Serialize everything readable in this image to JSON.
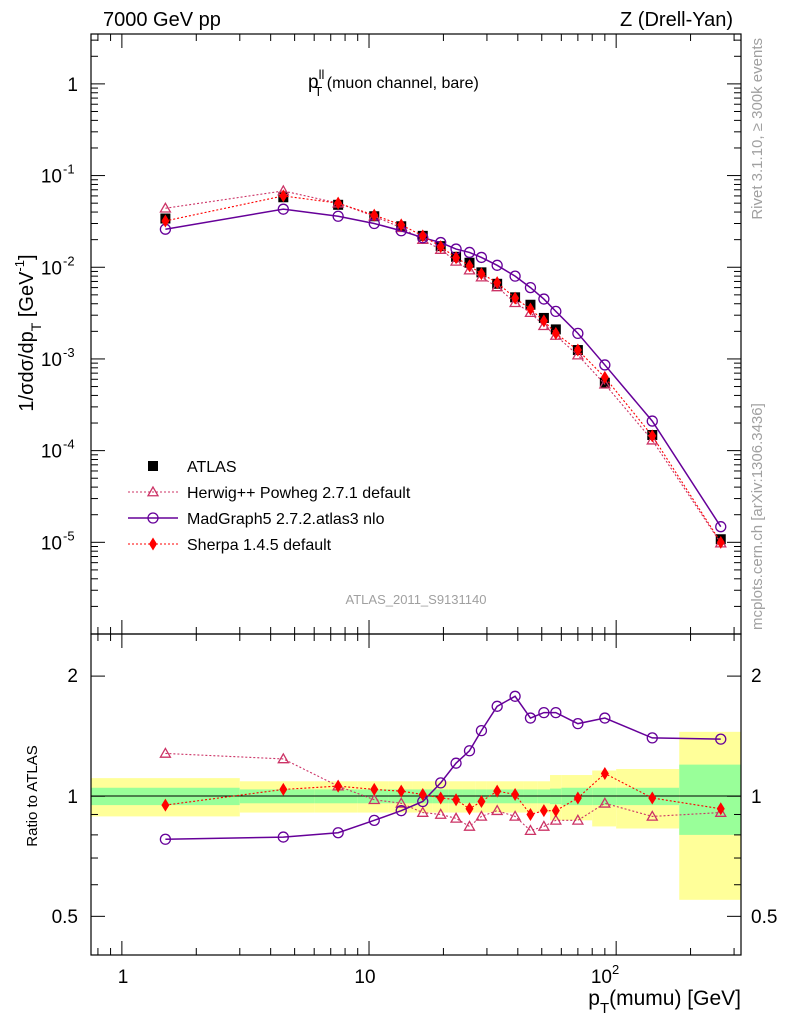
{
  "header": {
    "left": "7000 GeV pp",
    "right": "Z (Drell-Yan)",
    "title_main": "p",
    "title_sup": "ll",
    "title_sub": "T",
    "title_rest": " (muon channel, bare)",
    "analysis_id": "ATLAS_2011_S9131140",
    "side_top": "Rivet 3.1.10, ≥ 300k events",
    "side_bottom": "mcplots.cern.ch [arXiv:1306.3436]"
  },
  "axes": {
    "upper_ylabel": "1/σdσ/dp",
    "upper_ylabel_sub": "T",
    "upper_ylabel_unit": " [GeV",
    "upper_ylabel_unit_sup": "-1",
    "upper_ylabel_close": "]",
    "lower_ylabel": "Ratio to ATLAS",
    "xlabel_main": "p",
    "xlabel_sub": "T",
    "xlabel_rest": "(mumu) [GeV]",
    "x_ticks": [
      "1",
      "10",
      "10"
    ],
    "x_tick_sup": "2",
    "upper_y_ticks": [
      {
        "base": "10",
        "exp": "-5"
      },
      {
        "base": "10",
        "exp": "-4"
      },
      {
        "base": "10",
        "exp": "-3"
      },
      {
        "base": "10",
        "exp": "-2"
      },
      {
        "base": "10",
        "exp": "-1"
      },
      {
        "base": "1",
        "exp": ""
      }
    ],
    "lower_y_ticks": [
      "0.5",
      "1",
      "2"
    ]
  },
  "legend": [
    {
      "label": "ATLAS",
      "color": "#000000",
      "marker": "square"
    },
    {
      "label": "Herwig++ Powheg 2.7.1 default",
      "color": "#cc3366",
      "marker": "triangle"
    },
    {
      "label": "MadGraph5 2.7.2.atlas3 nlo",
      "color": "#660099",
      "marker": "circle"
    },
    {
      "label": "Sherpa 1.4.5 default",
      "color": "#ff0000",
      "marker": "diamond"
    }
  ],
  "chart_data": [
    {
      "type": "scatter",
      "panel": "main",
      "xscale": "log",
      "yscale": "log",
      "xlim": [
        0.75,
        320
      ],
      "ylim": [
        1e-06,
        3.5
      ],
      "x": [
        1.5,
        4.5,
        7.5,
        10.5,
        13.5,
        16.5,
        19.5,
        22.5,
        25.5,
        28.5,
        33.0,
        39.0,
        45.0,
        51.0,
        57.0,
        70.0,
        90.0,
        140.0,
        265.0
      ],
      "series": [
        {
          "name": "ATLAS",
          "color": "#000000",
          "marker": "square",
          "values": [
            0.034,
            0.058,
            0.048,
            0.036,
            0.028,
            0.022,
            0.017,
            0.013,
            0.0112,
            0.0088,
            0.0066,
            0.0047,
            0.0039,
            0.0028,
            0.0021,
            0.00125,
            0.00055,
            0.000148,
            1.08e-05
          ]
        },
        {
          "name": "Herwig++ Powheg 2.7.1 default",
          "color": "#cc3366",
          "marker": "triangle",
          "values": [
            0.044,
            0.068,
            0.05,
            0.036,
            0.027,
            0.02,
            0.0156,
            0.0116,
            0.0093,
            0.0078,
            0.0061,
            0.0041,
            0.0032,
            0.0023,
            0.0018,
            0.0011,
            0.00053,
            0.00013,
            9.8e-06
          ]
        },
        {
          "name": "MadGraph5 2.7.2.atlas3 nlo",
          "color": "#660099",
          "marker": "circle",
          "values": [
            0.026,
            0.043,
            0.036,
            0.03,
            0.025,
            0.021,
            0.0186,
            0.0158,
            0.0145,
            0.0128,
            0.0105,
            0.008,
            0.006,
            0.0045,
            0.0033,
            0.0019,
            0.00086,
            0.00021,
            1.48e-05
          ]
        },
        {
          "name": "Sherpa 1.4.5 default",
          "color": "#ff0000",
          "marker": "diamond",
          "values": [
            0.032,
            0.06,
            0.05,
            0.037,
            0.029,
            0.022,
            0.0168,
            0.0127,
            0.0104,
            0.0085,
            0.0068,
            0.0046,
            0.0035,
            0.0026,
            0.0019,
            0.00125,
            0.00063,
            0.000145,
            1e-05
          ]
        }
      ]
    },
    {
      "type": "scatter",
      "panel": "ratio",
      "xscale": "log",
      "yscale": "log",
      "xlim": [
        0.75,
        320
      ],
      "ylim": [
        0.4,
        2.55
      ],
      "x": [
        1.5,
        4.5,
        7.5,
        10.5,
        13.5,
        16.5,
        19.5,
        22.5,
        25.5,
        28.5,
        33.0,
        39.0,
        45.0,
        51.0,
        57.0,
        70.0,
        90.0,
        140.0,
        265.0
      ],
      "bands": {
        "edges": [
          0.75,
          3.0,
          6.0,
          9.0,
          12.0,
          15.0,
          18.0,
          21.0,
          24.0,
          27.0,
          30.0,
          36.0,
          42.0,
          48.0,
          54.0,
          60.0,
          80.0,
          100.0,
          180.0,
          320.0
        ],
        "inner_color": "#99ff99",
        "outer_color": "#ffff99",
        "inner": [
          0.05,
          0.04,
          0.04,
          0.04,
          0.04,
          0.04,
          0.04,
          0.04,
          0.04,
          0.04,
          0.04,
          0.04,
          0.04,
          0.04,
          0.045,
          0.05,
          0.05,
          0.05,
          0.2
        ],
        "outer": [
          0.11,
          0.09,
          0.09,
          0.09,
          0.09,
          0.09,
          0.09,
          0.09,
          0.09,
          0.09,
          0.09,
          0.09,
          0.09,
          0.09,
          0.13,
          0.13,
          0.16,
          0.17,
          0.45
        ]
      },
      "series": [
        {
          "name": "Herwig++ Powheg 2.7.1 default",
          "color": "#cc3366",
          "marker": "triangle",
          "values": [
            1.28,
            1.24,
            1.06,
            0.98,
            0.96,
            0.91,
            0.9,
            0.88,
            0.84,
            0.89,
            0.92,
            0.89,
            0.82,
            0.84,
            0.87,
            0.87,
            0.96,
            0.89,
            0.91
          ]
        },
        {
          "name": "MadGraph5 2.7.2.atlas3 nlo",
          "color": "#660099",
          "marker": "circle",
          "values": [
            0.78,
            0.79,
            0.81,
            0.87,
            0.92,
            0.97,
            1.08,
            1.21,
            1.3,
            1.46,
            1.68,
            1.78,
            1.57,
            1.62,
            1.62,
            1.52,
            1.57,
            1.4,
            1.39
          ]
        },
        {
          "name": "Sherpa 1.4.5 default",
          "color": "#ff0000",
          "marker": "diamond",
          "values": [
            0.95,
            1.04,
            1.06,
            1.04,
            1.03,
            1.01,
            0.99,
            0.98,
            0.93,
            0.97,
            1.03,
            1.01,
            0.9,
            0.92,
            0.92,
            0.99,
            1.14,
            0.99,
            0.93
          ]
        }
      ]
    }
  ]
}
